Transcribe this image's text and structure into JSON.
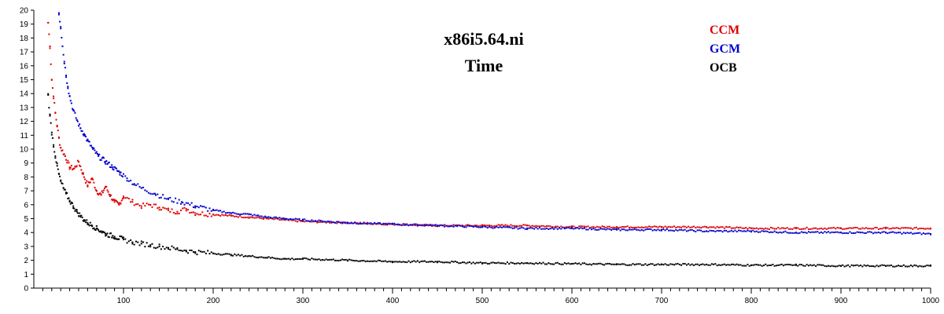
{
  "chart_data": {
    "type": "scatter",
    "title": "x86i5.64.ni",
    "subtitle": "Time",
    "xlim": [
      0,
      1000
    ],
    "ylim": [
      0,
      20
    ],
    "x_ticks": [
      100,
      200,
      300,
      400,
      500,
      600,
      700,
      800,
      900,
      1000
    ],
    "y_ticks": [
      0,
      1,
      2,
      3,
      4,
      5,
      6,
      7,
      8,
      9,
      10,
      11,
      12,
      13,
      14,
      15,
      16,
      17,
      18,
      19,
      20
    ],
    "grid": false,
    "legend_position": "top-right",
    "series": [
      {
        "name": "CCM",
        "color": "#e00000",
        "points": [
          [
            16,
            19.1
          ],
          [
            18,
            17.4
          ],
          [
            20,
            15.0
          ],
          [
            22,
            13.8
          ],
          [
            24,
            12.6
          ],
          [
            26,
            11.7
          ],
          [
            28,
            10.8
          ],
          [
            30,
            10.1
          ],
          [
            35,
            9.5
          ],
          [
            40,
            8.7
          ],
          [
            45,
            8.6
          ],
          [
            50,
            9.1
          ],
          [
            55,
            8.2
          ],
          [
            60,
            7.4
          ],
          [
            65,
            7.9
          ],
          [
            70,
            7.0
          ],
          [
            75,
            6.7
          ],
          [
            80,
            7.3
          ],
          [
            85,
            6.7
          ],
          [
            90,
            6.2
          ],
          [
            95,
            6.0
          ],
          [
            100,
            6.6
          ],
          [
            110,
            6.2
          ],
          [
            120,
            5.9
          ],
          [
            130,
            6.0
          ],
          [
            140,
            5.8
          ],
          [
            150,
            5.6
          ],
          [
            160,
            5.5
          ],
          [
            170,
            5.7
          ],
          [
            180,
            5.4
          ],
          [
            200,
            5.3
          ],
          [
            220,
            5.2
          ],
          [
            240,
            5.1
          ],
          [
            260,
            5.0
          ],
          [
            280,
            4.9
          ],
          [
            300,
            4.8
          ],
          [
            350,
            4.7
          ],
          [
            400,
            4.6
          ],
          [
            450,
            4.5
          ],
          [
            500,
            4.5
          ],
          [
            550,
            4.5
          ],
          [
            600,
            4.4
          ],
          [
            650,
            4.4
          ],
          [
            700,
            4.4
          ],
          [
            750,
            4.4
          ],
          [
            800,
            4.3
          ],
          [
            850,
            4.3
          ],
          [
            900,
            4.3
          ],
          [
            950,
            4.3
          ],
          [
            1000,
            4.3
          ]
        ]
      },
      {
        "name": "GCM",
        "color": "#0000d0",
        "points": [
          [
            28,
            19.8
          ],
          [
            30,
            18.8
          ],
          [
            32,
            17.4
          ],
          [
            34,
            16.3
          ],
          [
            36,
            15.3
          ],
          [
            38,
            14.5
          ],
          [
            40,
            13.8
          ],
          [
            44,
            12.8
          ],
          [
            48,
            12.1
          ],
          [
            52,
            11.5
          ],
          [
            56,
            11.1
          ],
          [
            60,
            10.6
          ],
          [
            66,
            10.0
          ],
          [
            72,
            9.5
          ],
          [
            80,
            9.1
          ],
          [
            88,
            8.7
          ],
          [
            96,
            8.3
          ],
          [
            104,
            7.9
          ],
          [
            112,
            7.5
          ],
          [
            120,
            7.2
          ],
          [
            135,
            6.8
          ],
          [
            150,
            6.4
          ],
          [
            165,
            6.2
          ],
          [
            180,
            5.9
          ],
          [
            200,
            5.6
          ],
          [
            220,
            5.4
          ],
          [
            240,
            5.3
          ],
          [
            260,
            5.1
          ],
          [
            280,
            5.0
          ],
          [
            300,
            4.9
          ],
          [
            350,
            4.7
          ],
          [
            400,
            4.6
          ],
          [
            450,
            4.5
          ],
          [
            500,
            4.4
          ],
          [
            550,
            4.3
          ],
          [
            600,
            4.3
          ],
          [
            650,
            4.2
          ],
          [
            700,
            4.2
          ],
          [
            750,
            4.1
          ],
          [
            800,
            4.1
          ],
          [
            850,
            4.0
          ],
          [
            900,
            4.0
          ],
          [
            950,
            4.0
          ],
          [
            1000,
            3.9
          ]
        ]
      },
      {
        "name": "OCB",
        "color": "#000000",
        "points": [
          [
            16,
            13.9
          ],
          [
            18,
            12.4
          ],
          [
            20,
            11.2
          ],
          [
            22,
            10.3
          ],
          [
            24,
            9.5
          ],
          [
            26,
            8.8
          ],
          [
            28,
            8.2
          ],
          [
            30,
            7.7
          ],
          [
            33,
            7.2
          ],
          [
            36,
            6.8
          ],
          [
            40,
            6.3
          ],
          [
            44,
            5.9
          ],
          [
            48,
            5.5
          ],
          [
            52,
            5.2
          ],
          [
            56,
            4.9
          ],
          [
            60,
            4.7
          ],
          [
            65,
            4.5
          ],
          [
            70,
            4.3
          ],
          [
            75,
            4.1
          ],
          [
            80,
            3.9
          ],
          [
            90,
            3.7
          ],
          [
            100,
            3.5
          ],
          [
            110,
            3.3
          ],
          [
            120,
            3.2
          ],
          [
            130,
            3.1
          ],
          [
            140,
            3.0
          ],
          [
            150,
            2.9
          ],
          [
            160,
            2.8
          ],
          [
            170,
            2.7
          ],
          [
            180,
            2.6
          ],
          [
            200,
            2.5
          ],
          [
            220,
            2.4
          ],
          [
            240,
            2.3
          ],
          [
            260,
            2.2
          ],
          [
            280,
            2.1
          ],
          [
            300,
            2.1
          ],
          [
            350,
            2.0
          ],
          [
            400,
            1.9
          ],
          [
            450,
            1.9
          ],
          [
            500,
            1.8
          ],
          [
            550,
            1.8
          ],
          [
            600,
            1.75
          ],
          [
            650,
            1.7
          ],
          [
            700,
            1.7
          ],
          [
            750,
            1.7
          ],
          [
            800,
            1.65
          ],
          [
            850,
            1.65
          ],
          [
            900,
            1.6
          ],
          [
            950,
            1.6
          ],
          [
            1000,
            1.6
          ]
        ]
      }
    ]
  }
}
